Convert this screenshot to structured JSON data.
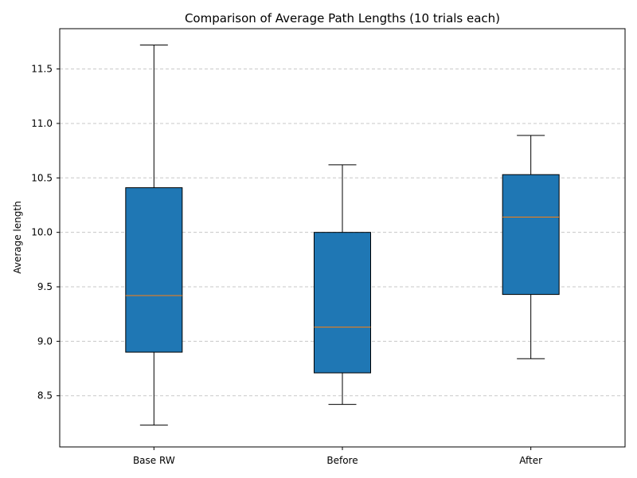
{
  "chart_data": {
    "type": "box",
    "title": "Comparison of Average Path Lengths (10 trials each)",
    "xlabel": "",
    "ylabel": "Average length",
    "ylim": [
      8.03,
      11.87
    ],
    "yticks": [
      8.5,
      9.0,
      9.5,
      10.0,
      10.5,
      11.0,
      11.5
    ],
    "ytick_labels": [
      "8.5",
      "9.0",
      "9.5",
      "10.0",
      "10.5",
      "11.0",
      "11.5"
    ],
    "grid": "y-dashed",
    "categories": [
      "Base RW",
      "Before",
      "After"
    ],
    "boxes": [
      {
        "min": 8.23,
        "q1": 8.9,
        "median": 9.42,
        "q3": 10.41,
        "max": 11.72
      },
      {
        "min": 8.42,
        "q1": 8.71,
        "median": 9.13,
        "q3": 10.0,
        "max": 10.62
      },
      {
        "min": 8.84,
        "q1": 9.43,
        "median": 10.14,
        "q3": 10.53,
        "max": 10.89
      }
    ],
    "colors": {
      "box_fill": "#1f77b4",
      "median": "#ff7f0e",
      "grid": "#c8c8c8"
    }
  }
}
